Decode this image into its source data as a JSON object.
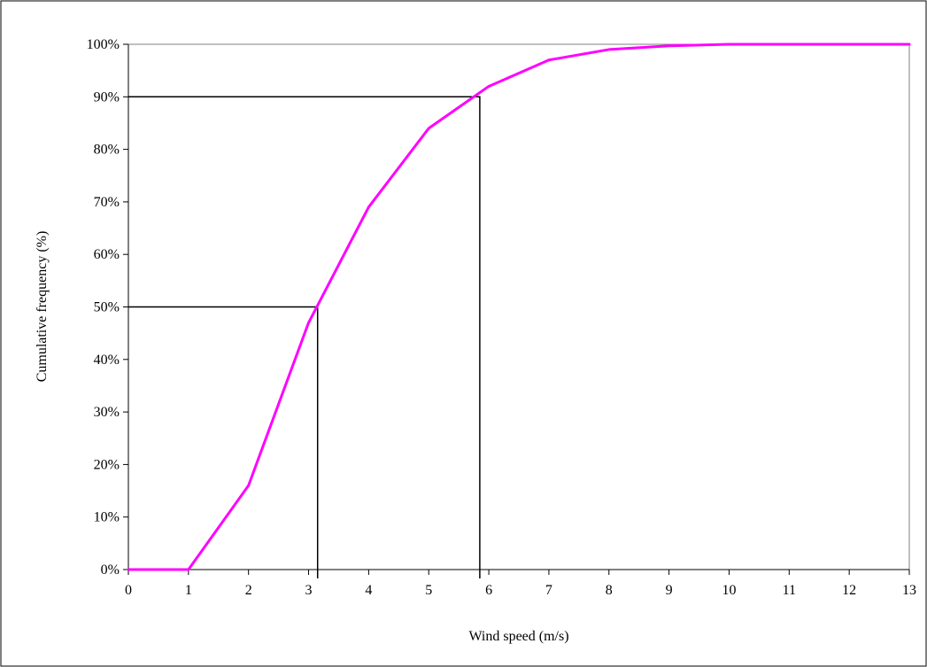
{
  "chart_data": {
    "type": "line",
    "title": "",
    "xlabel": "Wind speed (m/s)",
    "ylabel": "Cumulative frequency (%)",
    "xlim": [
      0,
      13
    ],
    "ylim": [
      0,
      100
    ],
    "x_ticks": [
      "0",
      "1",
      "2",
      "3",
      "4",
      "5",
      "6",
      "7",
      "8",
      "9",
      "10",
      "11",
      "12",
      "13"
    ],
    "y_ticks": [
      "0%",
      "10%",
      "20%",
      "30%",
      "40%",
      "50%",
      "60%",
      "70%",
      "80%",
      "90%",
      "100%"
    ],
    "grid": false,
    "legend": "none",
    "series": [
      {
        "color": "#ff00ff",
        "x": [
          0,
          1,
          2,
          3,
          4,
          5,
          6,
          7,
          8,
          9,
          10,
          11,
          12,
          13
        ],
        "y": [
          0,
          0,
          16,
          47,
          69,
          84,
          92,
          97,
          99,
          99.7,
          100,
          100,
          100,
          100
        ]
      }
    ],
    "reference_lines": [
      {
        "percentile": 50,
        "wind_speed": 3.15
      },
      {
        "percentile": 90,
        "wind_speed": 5.85
      }
    ]
  }
}
